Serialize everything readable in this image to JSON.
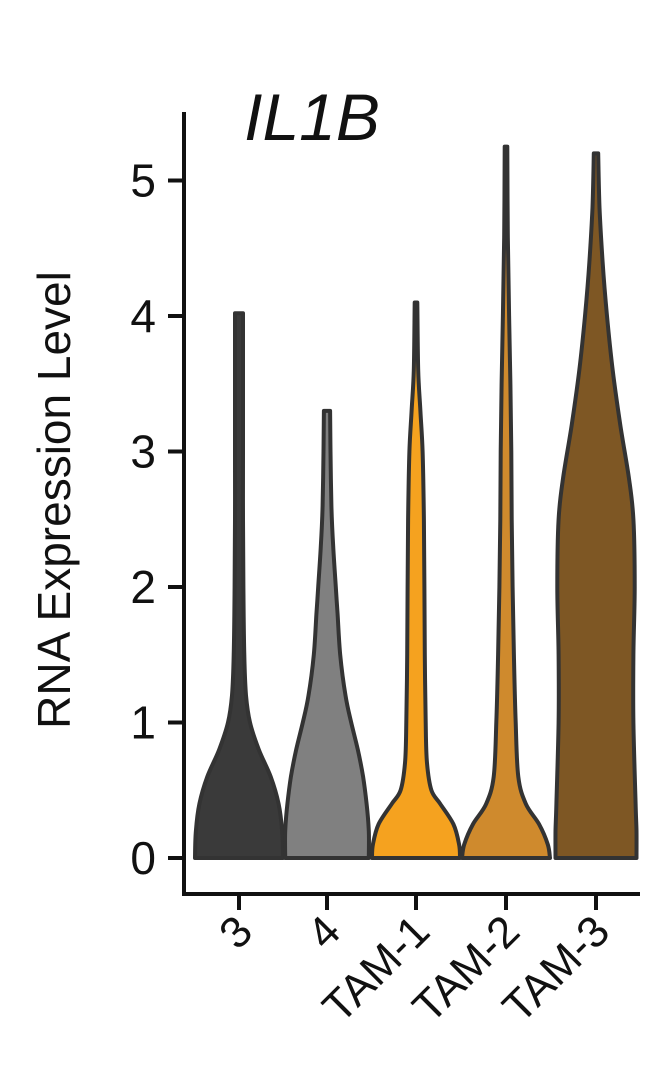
{
  "chart_data": {
    "type": "violin",
    "title": "IL1B",
    "xlabel": "",
    "ylabel": "RNA Expression Level",
    "ylim": [
      0,
      5.5
    ],
    "yticks": [
      "0",
      "1",
      "2",
      "3",
      "4",
      "5"
    ],
    "grid": false,
    "legend": "none",
    "categories": [
      "3",
      "4",
      "TAM-1",
      "TAM-2",
      "TAM-3"
    ],
    "series": [
      {
        "name": "3",
        "color": "#3a3a3a",
        "max": 4.02,
        "density": [
          [
            0,
            1.0
          ],
          [
            0.2,
            0.98
          ],
          [
            0.4,
            0.9
          ],
          [
            0.6,
            0.72
          ],
          [
            0.8,
            0.45
          ],
          [
            1.0,
            0.25
          ],
          [
            1.2,
            0.16
          ],
          [
            1.5,
            0.12
          ],
          [
            2.0,
            0.1
          ],
          [
            2.5,
            0.09
          ],
          [
            3.0,
            0.09
          ],
          [
            3.5,
            0.09
          ],
          [
            3.9,
            0.09
          ],
          [
            4.02,
            0.09
          ]
        ]
      },
      {
        "name": "4",
        "color": "#808080",
        "max": 3.3,
        "density": [
          [
            0,
            0.95
          ],
          [
            0.2,
            0.95
          ],
          [
            0.4,
            0.9
          ],
          [
            0.6,
            0.82
          ],
          [
            0.8,
            0.7
          ],
          [
            1.0,
            0.55
          ],
          [
            1.2,
            0.42
          ],
          [
            1.5,
            0.3
          ],
          [
            1.8,
            0.24
          ],
          [
            2.0,
            0.2
          ],
          [
            2.3,
            0.14
          ],
          [
            2.6,
            0.1
          ],
          [
            3.0,
            0.08
          ],
          [
            3.3,
            0.07
          ]
        ]
      },
      {
        "name": "TAM-1",
        "color": "#f5a21f",
        "max": 4.1,
        "density": [
          [
            0,
            1.0
          ],
          [
            0.1,
            0.98
          ],
          [
            0.25,
            0.85
          ],
          [
            0.4,
            0.55
          ],
          [
            0.5,
            0.35
          ],
          [
            0.7,
            0.25
          ],
          [
            1.0,
            0.22
          ],
          [
            1.5,
            0.2
          ],
          [
            2.0,
            0.19
          ],
          [
            2.5,
            0.18
          ],
          [
            3.0,
            0.15
          ],
          [
            3.3,
            0.1
          ],
          [
            3.6,
            0.05
          ],
          [
            4.1,
            0.03
          ]
        ]
      },
      {
        "name": "TAM-2",
        "color": "#cf8a2d",
        "max": 5.25,
        "density": [
          [
            0,
            1.0
          ],
          [
            0.1,
            0.95
          ],
          [
            0.25,
            0.75
          ],
          [
            0.4,
            0.45
          ],
          [
            0.6,
            0.28
          ],
          [
            1.0,
            0.22
          ],
          [
            1.5,
            0.18
          ],
          [
            2.0,
            0.15
          ],
          [
            2.5,
            0.13
          ],
          [
            3.0,
            0.12
          ],
          [
            3.5,
            0.1
          ],
          [
            4.0,
            0.07
          ],
          [
            4.6,
            0.04
          ],
          [
            5.25,
            0.03
          ]
        ]
      },
      {
        "name": "TAM-3",
        "color": "#7e5724",
        "max": 5.2,
        "density": [
          [
            0,
            0.92
          ],
          [
            0.2,
            0.92
          ],
          [
            0.4,
            0.9
          ],
          [
            1.0,
            0.85
          ],
          [
            1.5,
            0.85
          ],
          [
            2.0,
            0.88
          ],
          [
            2.5,
            0.85
          ],
          [
            2.8,
            0.75
          ],
          [
            3.2,
            0.55
          ],
          [
            3.6,
            0.38
          ],
          [
            4.0,
            0.25
          ],
          [
            4.4,
            0.15
          ],
          [
            4.8,
            0.08
          ],
          [
            5.2,
            0.05
          ]
        ]
      }
    ]
  }
}
